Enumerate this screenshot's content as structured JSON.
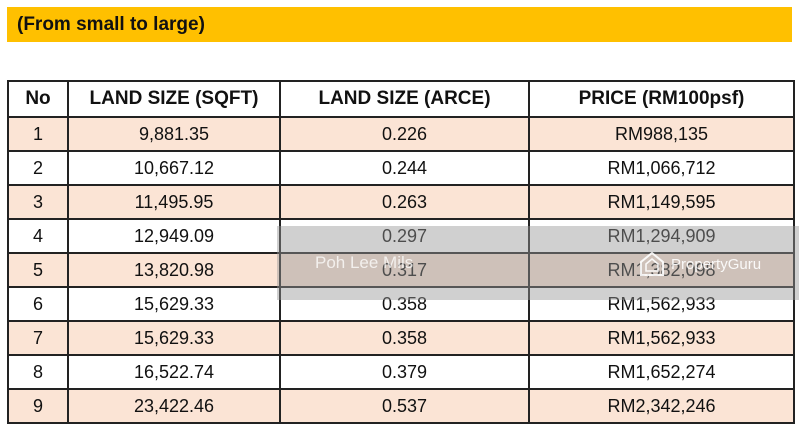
{
  "banner": {
    "text": "(From small to large)"
  },
  "table": {
    "headers": [
      "No",
      "LAND SIZE (SQFT)",
      "LAND SIZE (ARCE)",
      "PRICE (RM100psf)"
    ],
    "rows": [
      [
        "1",
        "9,881.35",
        "0.226",
        "RM988,135"
      ],
      [
        "2",
        "10,667.12",
        "0.244",
        "RM1,066,712"
      ],
      [
        "3",
        "11,495.95",
        "0.263",
        "RM1,149,595"
      ],
      [
        "4",
        "12,949.09",
        "0.297",
        "RM1,294,909"
      ],
      [
        "5",
        "13,820.98",
        "0.317",
        "RM1,382,098"
      ],
      [
        "6",
        "15,629.33",
        "0.358",
        "RM1,562,933"
      ],
      [
        "7",
        "15,629.33",
        "0.358",
        "RM1,562,933"
      ],
      [
        "8",
        "16,522.74",
        "0.379",
        "RM1,652,274"
      ],
      [
        "9",
        "23,422.46",
        "0.537",
        "RM2,342,246"
      ]
    ]
  },
  "watermark": {
    "name": "Poh Lee Mils",
    "brand": "PropertyGuru",
    "icon": "propertyguru-logo-icon"
  }
}
